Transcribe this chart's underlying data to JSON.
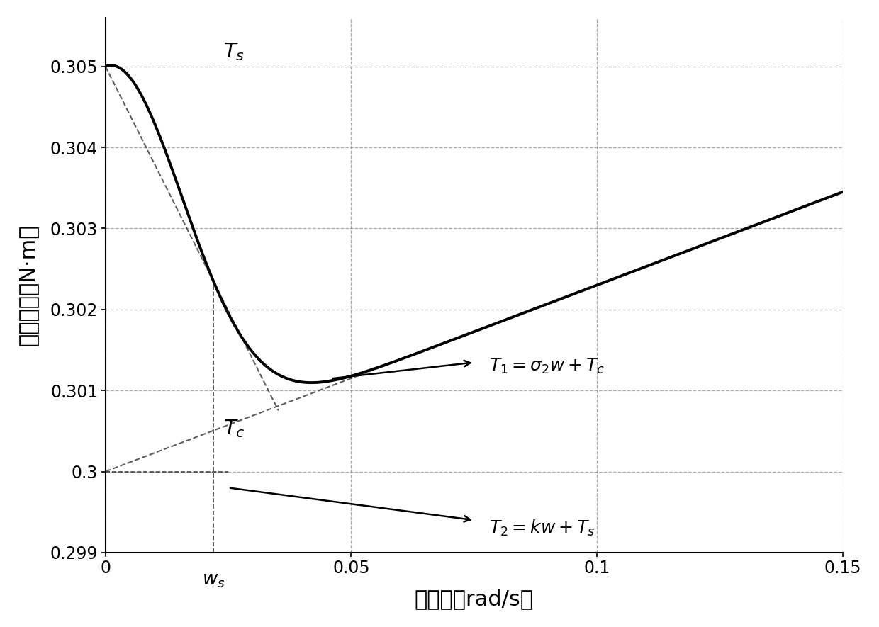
{
  "Ts": 0.305,
  "Tc": 0.3,
  "ws": 0.022,
  "sigma2": 0.023,
  "xlim": [
    0,
    0.15
  ],
  "ylim": [
    0.299,
    0.3056
  ],
  "xticks": [
    0,
    0.05,
    0.1,
    0.15
  ],
  "yticks": [
    0.299,
    0.3,
    0.301,
    0.302,
    0.303,
    0.304,
    0.305
  ],
  "xlabel": "角速度（rad/s）",
  "ylabel": "摩擦力矩（N·m）",
  "bg_color": "#ffffff",
  "line_color": "#000000",
  "dashed_color": "#444444",
  "annotation1": "$T_1=\\sigma_2 w+T_c$",
  "annotation2": "$T_2=kw+T_s$"
}
